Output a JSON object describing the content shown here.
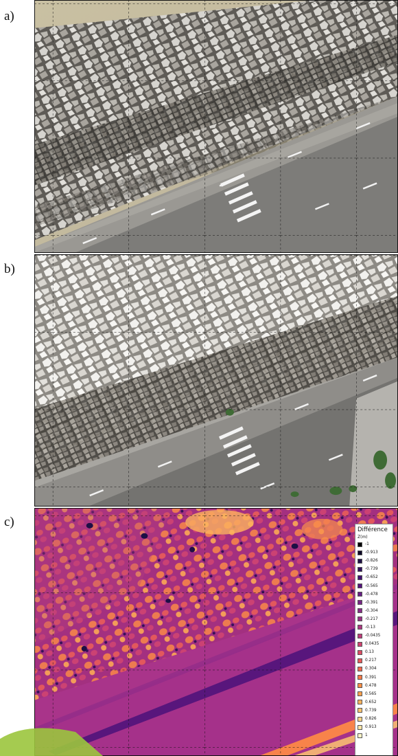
{
  "panels": [
    {
      "label": "a)"
    },
    {
      "label": "b)"
    },
    {
      "label": "c)"
    }
  ],
  "legend": {
    "title": "Différence",
    "unit": "Z(m)",
    "items": [
      {
        "value": "-1",
        "color": "#000004"
      },
      {
        "value": "-0.913",
        "color": "#0c0826"
      },
      {
        "value": "-0.826",
        "color": "#1d0f45"
      },
      {
        "value": "-0.739",
        "color": "#2f0f5f"
      },
      {
        "value": "-0.652",
        "color": "#421073"
      },
      {
        "value": "-0.565",
        "color": "#55157d"
      },
      {
        "value": "-0.478",
        "color": "#661f84"
      },
      {
        "value": "-0.391",
        "color": "#772687"
      },
      {
        "value": "-0.304",
        "color": "#892c88"
      },
      {
        "value": "-0.217",
        "color": "#9b3186"
      },
      {
        "value": "-0.13",
        "color": "#ad3782"
      },
      {
        "value": "-0.0435",
        "color": "#bf3c7a"
      },
      {
        "value": "0.0435",
        "color": "#cf4370"
      },
      {
        "value": "0.13",
        "color": "#dd4d64"
      },
      {
        "value": "0.217",
        "color": "#e95959"
      },
      {
        "value": "0.304",
        "color": "#f2684e"
      },
      {
        "value": "0.391",
        "color": "#f87a47"
      },
      {
        "value": "0.478",
        "color": "#fb8d45"
      },
      {
        "value": "0.565",
        "color": "#fda04d"
      },
      {
        "value": "0.652",
        "color": "#feb25c"
      },
      {
        "value": "0.739",
        "color": "#fdc470"
      },
      {
        "value": "0.826",
        "color": "#fcd588"
      },
      {
        "value": "0.913",
        "color": "#fce6a6"
      },
      {
        "value": "1",
        "color": "#fcf6c6"
      }
    ]
  }
}
